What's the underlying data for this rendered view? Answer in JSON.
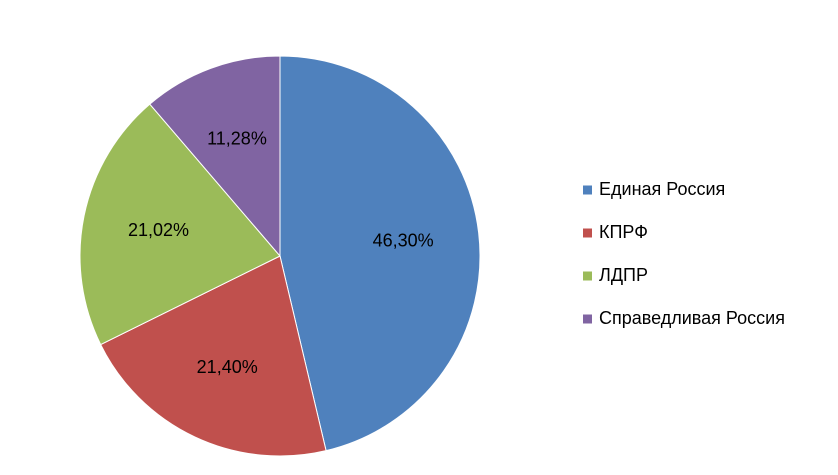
{
  "chart_data": {
    "type": "pie",
    "title": "",
    "legend_position": "right",
    "slices": [
      {
        "label": "Единая Россия",
        "value": 46.3,
        "display": "46,30%",
        "color": "#4F81BD"
      },
      {
        "label": "КПРФ",
        "value": 21.4,
        "display": "21,40%",
        "color": "#C0504D"
      },
      {
        "label": "ЛДПР",
        "value": 21.02,
        "display": "21,02%",
        "color": "#9BBB59"
      },
      {
        "label": "Справедливая Россия",
        "value": 11.28,
        "display": "11,28%",
        "color": "#8064A2"
      }
    ]
  }
}
